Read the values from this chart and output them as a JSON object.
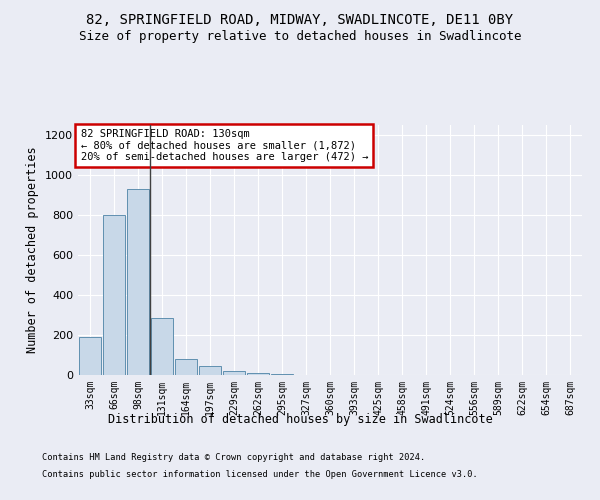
{
  "title1": "82, SPRINGFIELD ROAD, MIDWAY, SWADLINCOTE, DE11 0BY",
  "title2": "Size of property relative to detached houses in Swadlincote",
  "xlabel": "Distribution of detached houses by size in Swadlincote",
  "ylabel": "Number of detached properties",
  "footnote1": "Contains HM Land Registry data © Crown copyright and database right 2024.",
  "footnote2": "Contains public sector information licensed under the Open Government Licence v3.0.",
  "categories": [
    "33sqm",
    "66sqm",
    "98sqm",
    "131sqm",
    "164sqm",
    "197sqm",
    "229sqm",
    "262sqm",
    "295sqm",
    "327sqm",
    "360sqm",
    "393sqm",
    "425sqm",
    "458sqm",
    "491sqm",
    "524sqm",
    "556sqm",
    "589sqm",
    "622sqm",
    "654sqm",
    "687sqm"
  ],
  "values": [
    190,
    800,
    930,
    285,
    80,
    45,
    20,
    12,
    5,
    0,
    0,
    0,
    0,
    0,
    0,
    0,
    0,
    0,
    0,
    0,
    0
  ],
  "bar_color": "#c8d8e8",
  "bar_edge_color": "#6090b0",
  "vline_x": 2.5,
  "vline_color": "#404040",
  "annotation_text": "82 SPRINGFIELD ROAD: 130sqm\n← 80% of detached houses are smaller (1,872)\n20% of semi-detached houses are larger (472) →",
  "annotation_box_color": "#ffffff",
  "annotation_box_edge": "#cc0000",
  "ylim": [
    0,
    1250
  ],
  "yticks": [
    0,
    200,
    400,
    600,
    800,
    1000,
    1200
  ],
  "bg_color": "#eaecf4",
  "plot_bg_color": "#eaecf4",
  "title1_fontsize": 10,
  "title2_fontsize": 9,
  "xlabel_fontsize": 8.5,
  "ylabel_fontsize": 8.5,
  "tick_fontsize": 8,
  "xtick_fontsize": 7
}
